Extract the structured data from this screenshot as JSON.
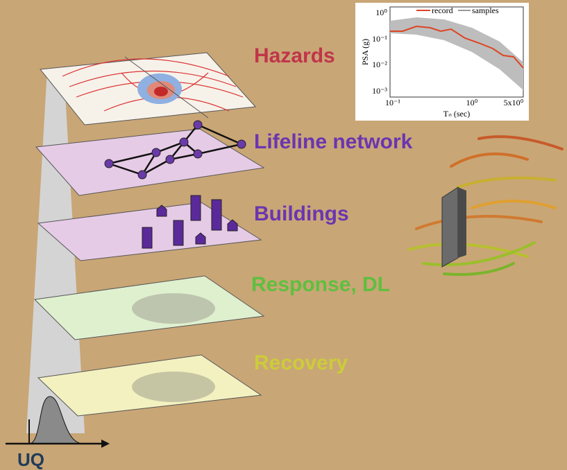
{
  "layers": [
    {
      "label": "Hazards"
    },
    {
      "label": "Lifeline network"
    },
    {
      "label": "Buildings"
    },
    {
      "label": "Response, DL"
    },
    {
      "label": "Recovery"
    }
  ],
  "uq_label": "UQ",
  "inset": {
    "legend": [
      "record",
      "samples"
    ],
    "y_label": "PSA (g)",
    "x_label": "Tₙ (sec)",
    "y_ticks": [
      "10⁰",
      "10⁻¹",
      "10⁻²",
      "10⁻³"
    ],
    "x_ticks": [
      "10⁻¹",
      "10⁰",
      "5x10⁰"
    ]
  }
}
